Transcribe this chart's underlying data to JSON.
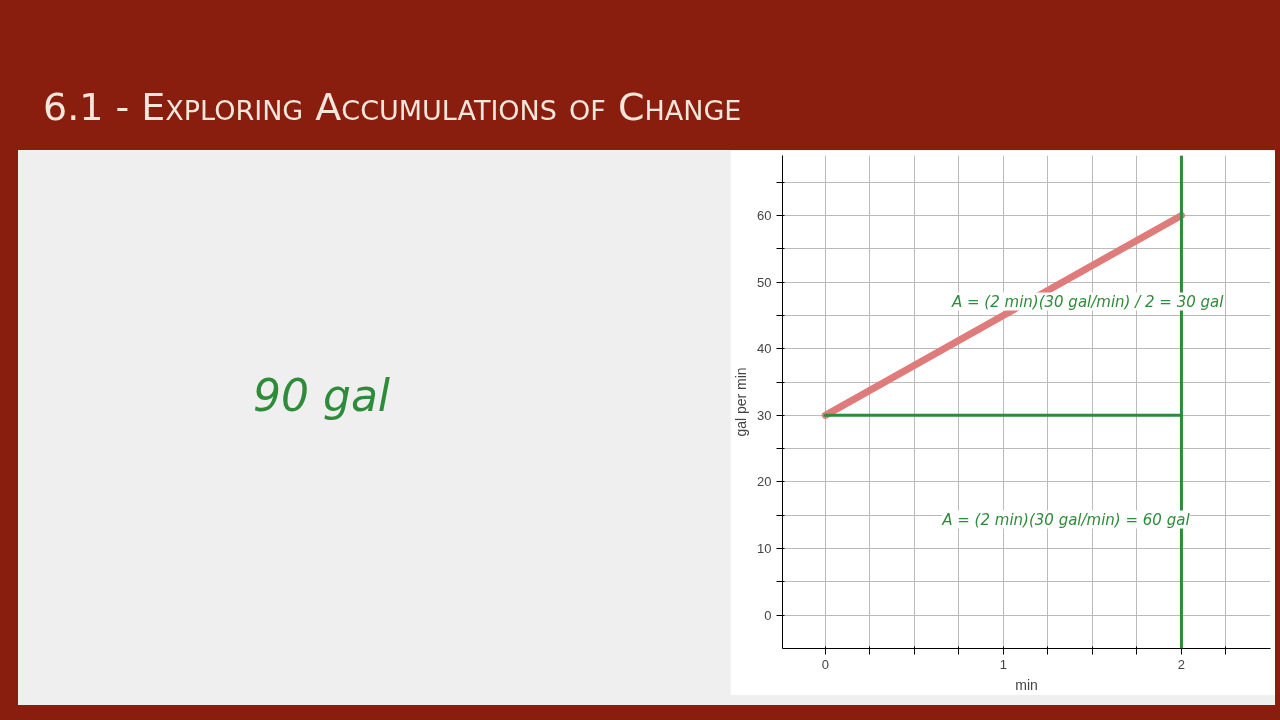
{
  "chart_data": {
    "type": "line",
    "title": "6.1 - Exploring Accumulations of Change",
    "xlabel": "min",
    "ylabel": "gal per min",
    "xlim": [
      -0.24,
      2.5
    ],
    "ylim": [
      -5,
      69
    ],
    "xticks": [
      0,
      {
        "value": 0.25,
        "label": null
      },
      {
        "value": 0.5,
        "label": null
      },
      {
        "value": 0.75,
        "label": null
      },
      1,
      {
        "value": 1.25,
        "label": null
      },
      {
        "value": 1.5,
        "label": null
      },
      {
        "value": 1.75,
        "label": null
      },
      2,
      {
        "value": 2.25,
        "label": null
      }
    ],
    "yticks": [
      0,
      {
        "value": 5,
        "label": null
      },
      10,
      {
        "value": 15,
        "label": null
      },
      20,
      {
        "value": 25,
        "label": null
      },
      30,
      {
        "value": 35,
        "label": null
      },
      40,
      {
        "value": 45,
        "label": null
      },
      50,
      {
        "value": 55,
        "label": null
      },
      60,
      {
        "value": 65,
        "label": null
      }
    ],
    "grid": true,
    "marker": "none",
    "line_style": "solid",
    "x": [
      0,
      2
    ],
    "series": [
      {
        "color": "#e07b7b",
        "values": [
          30,
          60
        ]
      },
      {
        "color": "#2e8b3a",
        "values": [
          30,
          30
        ]
      }
    ],
    "ref_lines": [
      {
        "axis": "x",
        "value": 2,
        "color": "#2e8b3a"
      }
    ],
    "annotations": [
      "A = (2 min)(30 gal/min) / 2 = 30 gal",
      "A = (2 min)(30 gal/min) = 60 gal",
      "90 gal"
    ]
  }
}
